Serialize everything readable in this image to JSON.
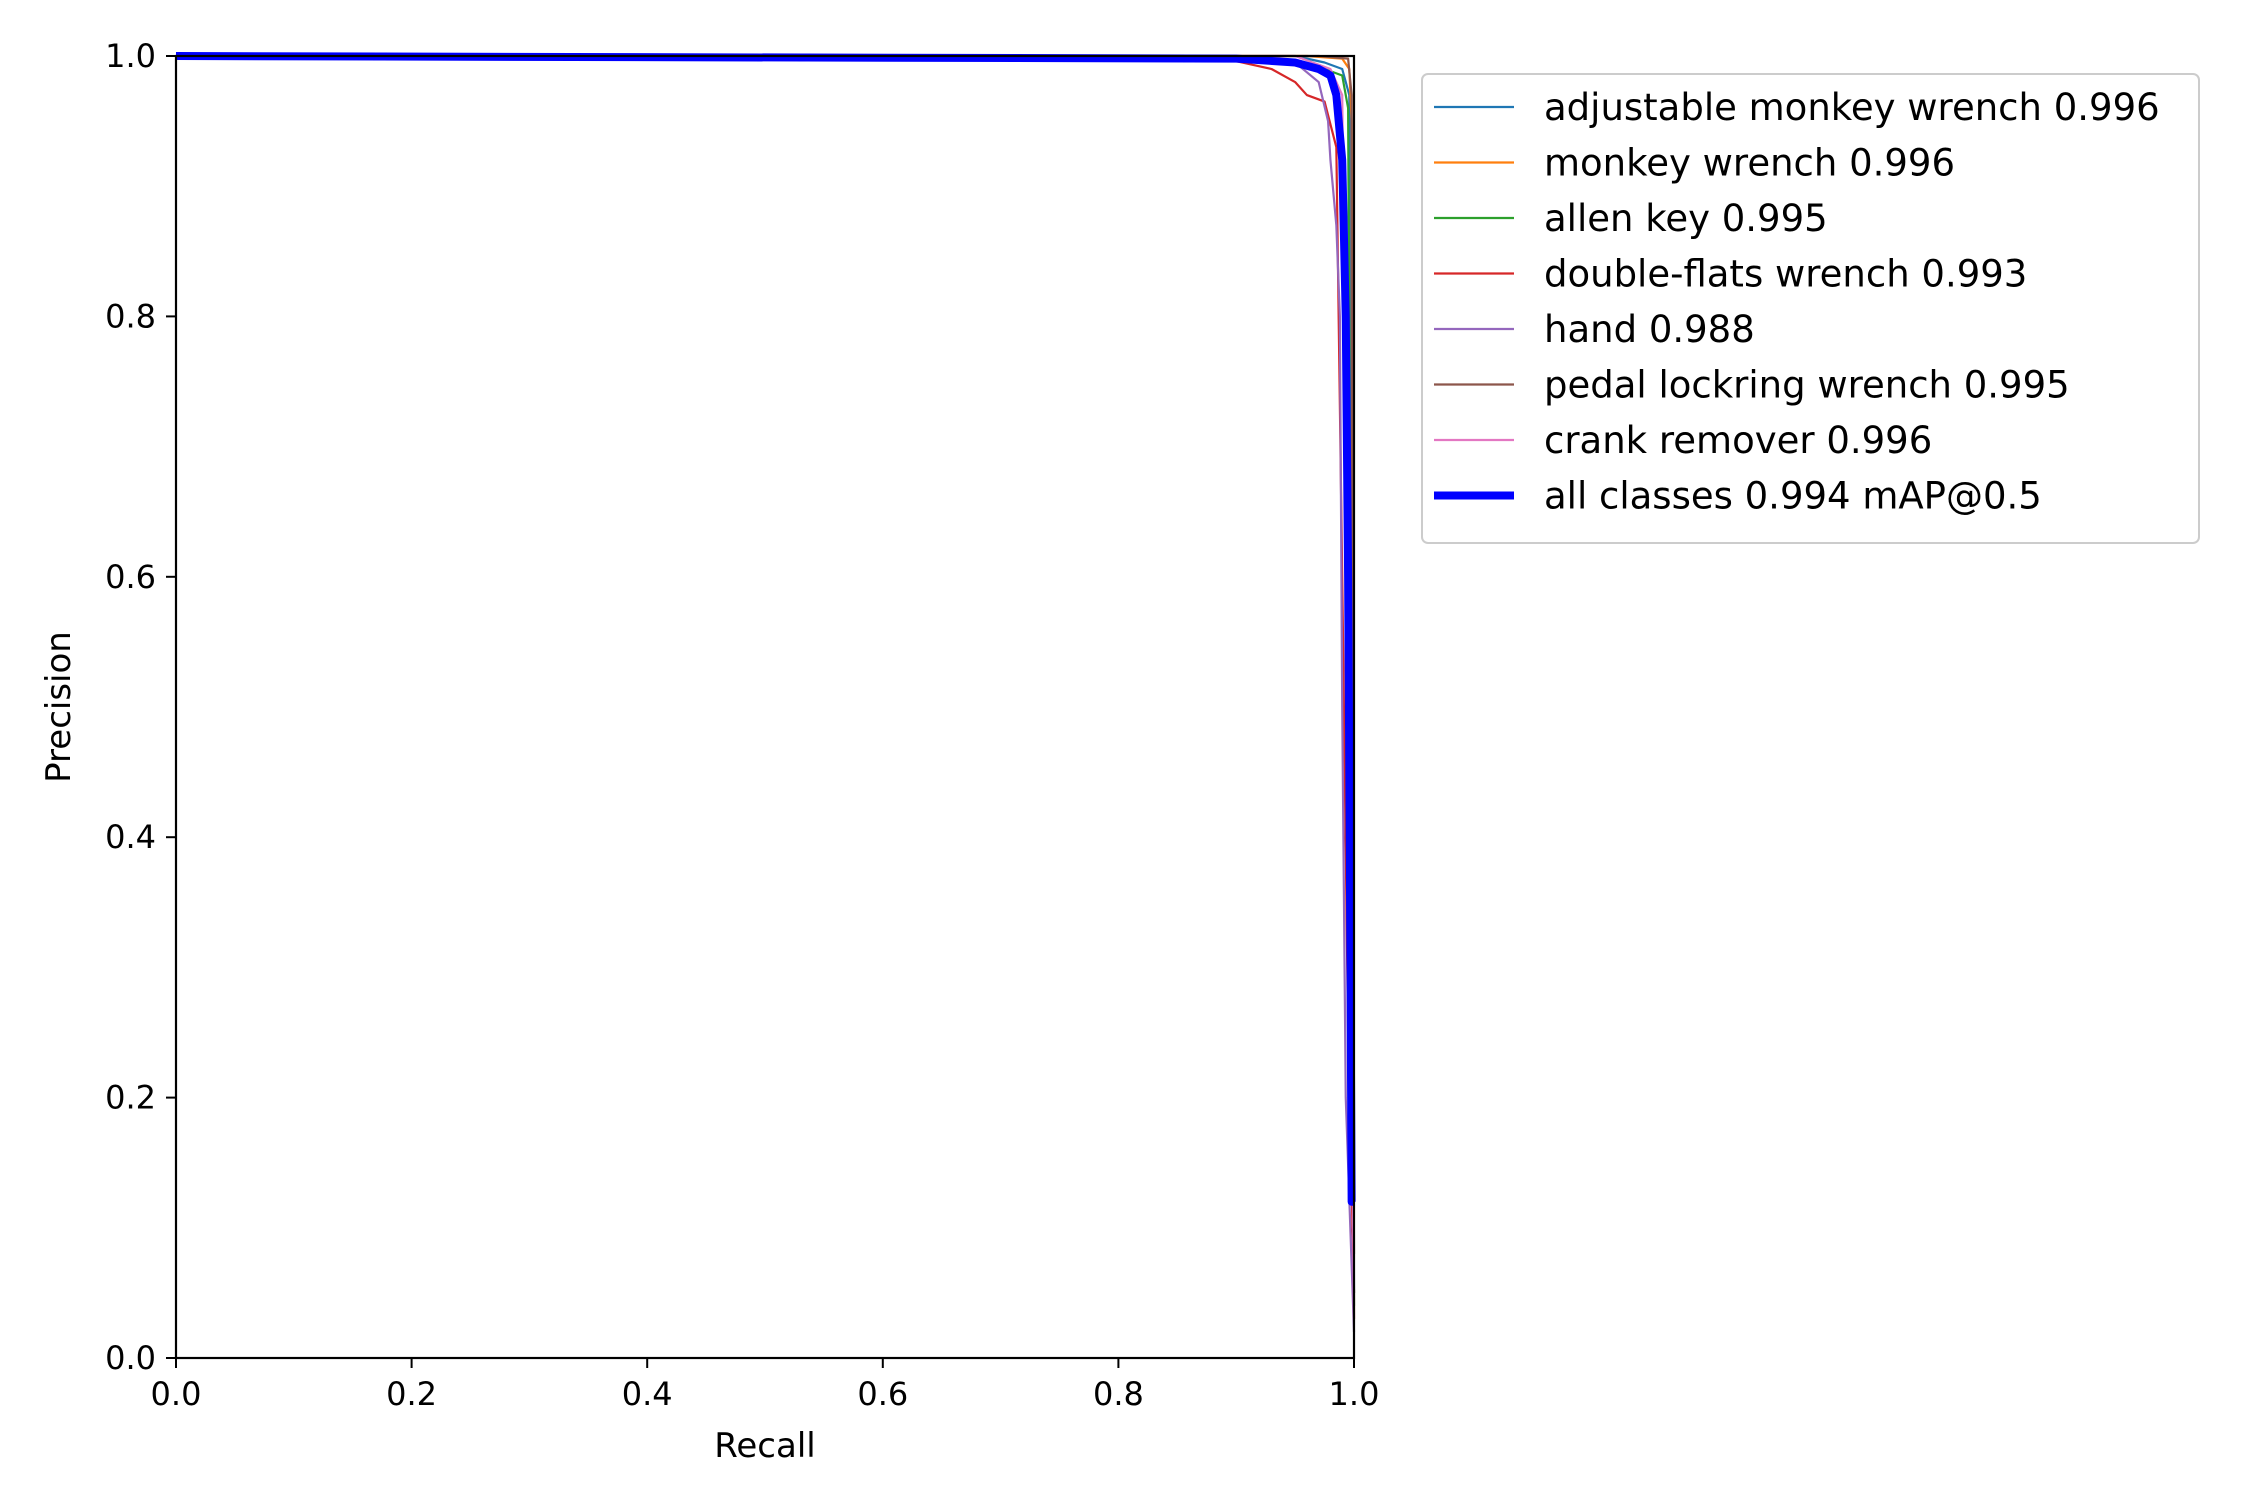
{
  "chart_data": {
    "type": "line",
    "title": "",
    "xlabel": "Recall",
    "ylabel": "Precision",
    "xlim": [
      0,
      1
    ],
    "ylim": [
      0,
      1
    ],
    "x_ticks": [
      "0.0",
      "0.2",
      "0.4",
      "0.6",
      "0.8",
      "1.0"
    ],
    "y_ticks": [
      "0.0",
      "0.2",
      "0.4",
      "0.6",
      "0.8",
      "1.0"
    ],
    "grid": false,
    "legend_position": "outside-top-right",
    "series": [
      {
        "name": "adjustable monkey wrench 0.996",
        "color": "#1f77b4",
        "width": "thin",
        "points": [
          [
            0,
            1
          ],
          [
            0.95,
            1
          ],
          [
            0.975,
            0.995
          ],
          [
            0.99,
            0.99
          ],
          [
            0.996,
            0.97
          ],
          [
            0.998,
            0.5
          ],
          [
            1.0,
            0.05
          ]
        ]
      },
      {
        "name": "monkey wrench 0.996",
        "color": "#ff7f0e",
        "width": "thin",
        "points": [
          [
            0,
            1
          ],
          [
            0.96,
            1
          ],
          [
            0.99,
            0.998
          ],
          [
            0.996,
            0.99
          ],
          [
            0.998,
            0.95
          ],
          [
            0.999,
            0.4
          ],
          [
            1.0,
            0.03
          ]
        ]
      },
      {
        "name": "allen key 0.995",
        "color": "#2ca02c",
        "width": "thin",
        "points": [
          [
            0,
            1
          ],
          [
            0.95,
            0.997
          ],
          [
            0.975,
            0.99
          ],
          [
            0.99,
            0.985
          ],
          [
            0.995,
            0.96
          ],
          [
            0.997,
            0.6
          ],
          [
            1.0,
            0.04
          ]
        ]
      },
      {
        "name": "double-flats wrench 0.993",
        "color": "#d62728",
        "width": "thin",
        "points": [
          [
            0,
            1
          ],
          [
            0.86,
            1
          ],
          [
            0.9,
            0.996
          ],
          [
            0.93,
            0.99
          ],
          [
            0.95,
            0.98
          ],
          [
            0.96,
            0.97
          ],
          [
            0.975,
            0.965
          ],
          [
            0.985,
            0.93
          ],
          [
            0.99,
            0.6
          ],
          [
            0.995,
            0.25
          ],
          [
            1.0,
            0.05
          ]
        ]
      },
      {
        "name": "hand 0.988",
        "color": "#9467bd",
        "width": "thin",
        "points": [
          [
            0,
            1
          ],
          [
            0.9,
            1
          ],
          [
            0.95,
            0.995
          ],
          [
            0.97,
            0.98
          ],
          [
            0.978,
            0.95
          ],
          [
            0.98,
            0.92
          ],
          [
            0.985,
            0.87
          ],
          [
            0.988,
            0.8
          ],
          [
            0.99,
            0.5
          ],
          [
            0.993,
            0.2
          ],
          [
            1.0,
            0.02
          ]
        ]
      },
      {
        "name": "pedal lockring wrench 0.995",
        "color": "#8c564b",
        "width": "thin",
        "points": [
          [
            0,
            1
          ],
          [
            0.97,
            1
          ],
          [
            0.995,
            0.998
          ],
          [
            0.998,
            0.97
          ],
          [
            0.999,
            0.3
          ],
          [
            1.0,
            0.08
          ]
        ]
      },
      {
        "name": "crank remover 0.996",
        "color": "#e377c2",
        "width": "thin",
        "points": [
          [
            0,
            1
          ],
          [
            0.95,
            1
          ],
          [
            0.98,
            0.99
          ],
          [
            0.99,
            0.97
          ],
          [
            0.995,
            0.5
          ],
          [
            1.0,
            0.03
          ]
        ]
      },
      {
        "name": "all classes 0.994 mAP@0.5",
        "color": "#0000ff",
        "width": "thick",
        "points": [
          [
            0,
            1
          ],
          [
            0.9,
            0.998
          ],
          [
            0.95,
            0.995
          ],
          [
            0.97,
            0.99
          ],
          [
            0.98,
            0.985
          ],
          [
            0.985,
            0.97
          ],
          [
            0.99,
            0.92
          ],
          [
            0.993,
            0.8
          ],
          [
            0.995,
            0.6
          ],
          [
            0.997,
            0.3
          ],
          [
            0.998,
            0.12
          ],
          [
            1.0,
            0.12
          ]
        ]
      }
    ]
  }
}
